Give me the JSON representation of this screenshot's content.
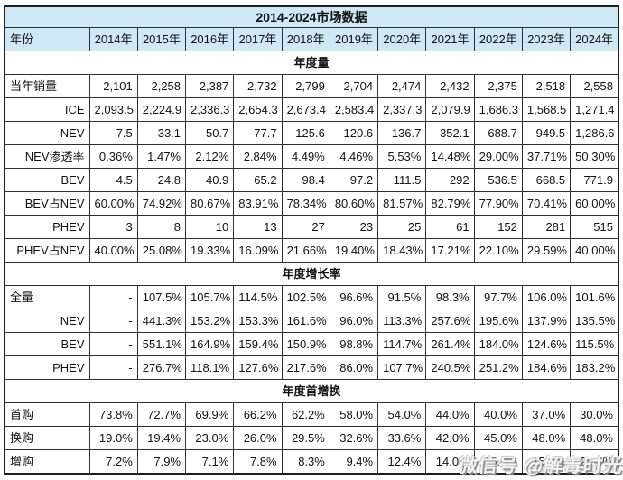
{
  "chart_data": {
    "type": "table",
    "title": "2014-2024市场数据",
    "header": {
      "label": "年份",
      "years": [
        "2014年",
        "2015年",
        "2016年",
        "2017年",
        "2018年",
        "2019年",
        "2020年",
        "2021年",
        "2022年",
        "2023年",
        "2024年"
      ]
    },
    "sections": [
      {
        "title": "年度量",
        "rows": [
          {
            "label": "当年销量",
            "align": "left",
            "values": [
              "2,101",
              "2,258",
              "2,387",
              "2,732",
              "2,799",
              "2,704",
              "2,474",
              "2,432",
              "2,375",
              "2,518",
              "2,558"
            ]
          },
          {
            "label": "ICE",
            "align": "right",
            "values": [
              "2,093.5",
              "2,224.9",
              "2,336.3",
              "2,654.3",
              "2,673.4",
              "2,583.4",
              "2,337.3",
              "2,079.9",
              "1,686.3",
              "1,568.5",
              "1,271.4"
            ]
          },
          {
            "label": "NEV",
            "align": "right",
            "values": [
              "7.5",
              "33.1",
              "50.7",
              "77.7",
              "125.6",
              "120.6",
              "136.7",
              "352.1",
              "688.7",
              "949.5",
              "1,286.6"
            ]
          },
          {
            "label": "NEV渗透率",
            "align": "right",
            "values": [
              "0.36%",
              "1.47%",
              "2.12%",
              "2.84%",
              "4.49%",
              "4.46%",
              "5.53%",
              "14.48%",
              "29.00%",
              "37.71%",
              "50.30%"
            ]
          },
          {
            "label": "BEV",
            "align": "right",
            "values": [
              "4.5",
              "24.8",
              "40.9",
              "65.2",
              "98.4",
              "97.2",
              "111.5",
              "292",
              "536.5",
              "668.5",
              "771.9"
            ]
          },
          {
            "label": "BEV占NEV",
            "align": "right",
            "values": [
              "60.00%",
              "74.92%",
              "80.67%",
              "83.91%",
              "78.34%",
              "80.60%",
              "81.57%",
              "82.79%",
              "77.90%",
              "70.41%",
              "60.00%"
            ]
          },
          {
            "label": "PHEV",
            "align": "right",
            "values": [
              "3",
              "8",
              "10",
              "13",
              "27",
              "23",
              "25",
              "61",
              "152",
              "281",
              "515"
            ]
          },
          {
            "label": "PHEV占NEV",
            "align": "right",
            "values": [
              "40.00%",
              "25.08%",
              "19.33%",
              "16.09%",
              "21.66%",
              "19.40%",
              "18.43%",
              "17.21%",
              "22.10%",
              "29.59%",
              "40.00%"
            ]
          }
        ]
      },
      {
        "title": "年度增长率",
        "rows": [
          {
            "label": "全量",
            "align": "left",
            "values": [
              "-",
              "107.5%",
              "105.7%",
              "114.5%",
              "102.5%",
              "96.6%",
              "91.5%",
              "98.3%",
              "97.7%",
              "106.0%",
              "101.6%"
            ]
          },
          {
            "label": "NEV",
            "align": "right",
            "values": [
              "-",
              "441.3%",
              "153.2%",
              "153.3%",
              "161.6%",
              "96.0%",
              "113.3%",
              "257.6%",
              "195.6%",
              "137.9%",
              "135.5%"
            ]
          },
          {
            "label": "BEV",
            "align": "right",
            "values": [
              "-",
              "551.1%",
              "164.9%",
              "159.4%",
              "150.9%",
              "98.8%",
              "114.7%",
              "261.4%",
              "184.0%",
              "124.6%",
              "115.5%"
            ]
          },
          {
            "label": "PHEV",
            "align": "right",
            "values": [
              "-",
              "276.7%",
              "118.1%",
              "127.6%",
              "217.6%",
              "86.0%",
              "107.7%",
              "240.5%",
              "251.2%",
              "184.6%",
              "183.2%"
            ]
          }
        ]
      },
      {
        "title": "年度首增换",
        "rows": [
          {
            "label": "首购",
            "align": "left",
            "values": [
              "73.8%",
              "72.7%",
              "69.9%",
              "66.2%",
              "62.2%",
              "58.0%",
              "54.0%",
              "44.0%",
              "40.0%",
              "37.0%",
              "30.0%"
            ]
          },
          {
            "label": "换购",
            "align": "left",
            "values": [
              "19.0%",
              "19.4%",
              "23.0%",
              "26.0%",
              "29.5%",
              "32.6%",
              "33.6%",
              "42.0%",
              "45.0%",
              "48.0%",
              "48.0%"
            ]
          },
          {
            "label": "增购",
            "align": "left",
            "values": [
              "7.2%",
              "7.9%",
              "7.1%",
              "7.8%",
              "8.3%",
              "9.4%",
              "12.4%",
              "14.0%",
              "15.0%",
              "15.0%",
              "22.0%"
            ]
          }
        ]
      }
    ]
  },
  "watermark": {
    "text": "微信号 @解毒时光"
  },
  "colors": {
    "header_bg": "#cfe8f6",
    "border": "#2e2e2e",
    "outer_border": "#1f1f1f",
    "text": "#111111"
  }
}
